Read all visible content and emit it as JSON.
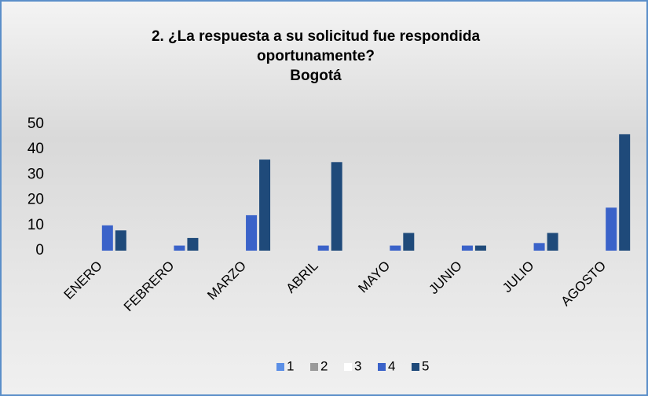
{
  "chart_data": {
    "type": "bar",
    "title": [
      "2. ¿La respuesta a su solicitud fue respondida",
      "oportunamente?",
      "Bogotá"
    ],
    "categories": [
      "ENERO",
      "FEBRERO",
      "MARZO",
      "ABRIL",
      "MAYO",
      "JUNIO",
      "JULIO",
      "AGOSTO"
    ],
    "series": [
      {
        "name": "1",
        "color": "#5b8fe6",
        "values": [
          0,
          0,
          0,
          0,
          0,
          0,
          0,
          0
        ]
      },
      {
        "name": "2",
        "color": "#9a9a9a",
        "values": [
          0,
          0,
          0,
          0,
          0,
          0,
          0,
          0
        ]
      },
      {
        "name": "3",
        "color": "#ffffff",
        "values": [
          0,
          0,
          0,
          0,
          0,
          0,
          0,
          0
        ]
      },
      {
        "name": "4",
        "color": "#3a62c9",
        "values": [
          10,
          2,
          14,
          2,
          2,
          2,
          3,
          17
        ]
      },
      {
        "name": "5",
        "color": "#1f4a7a",
        "values": [
          8,
          5,
          36,
          35,
          7,
          2,
          7,
          46
        ]
      }
    ],
    "ylim": [
      0,
      50
    ],
    "yticks": [
      0,
      10,
      20,
      30,
      40,
      50
    ],
    "grid": false,
    "legend": "bottom"
  }
}
